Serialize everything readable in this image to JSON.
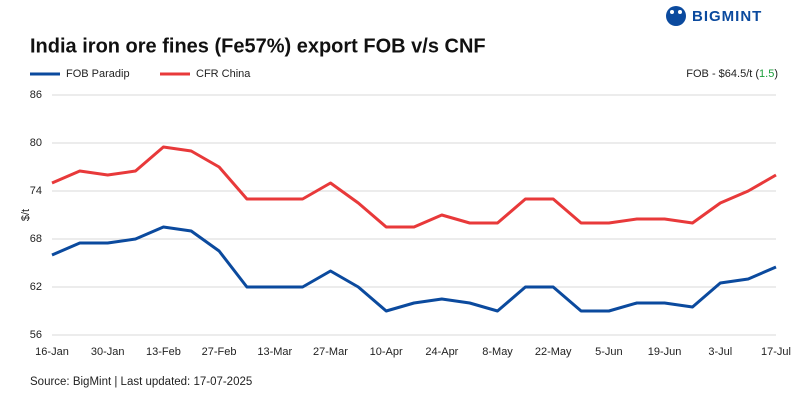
{
  "brand": "BIGMINT",
  "chart_data": {
    "type": "line",
    "title": "India iron ore fines (Fe57%) export FOB v/s CNF",
    "y_label": "$/t",
    "annotation": {
      "prefix": "FOB - $64.5/t (",
      "change": "1.5",
      "suffix": ")",
      "change_color": "#1a9e3a"
    },
    "source": "Source: BigMint | Last updated: 17-07-2025",
    "categories": [
      "16-Jan",
      null,
      "30-Jan",
      null,
      "13-Feb",
      null,
      "27-Feb",
      null,
      "13-Mar",
      null,
      "27-Mar",
      null,
      "10-Apr",
      null,
      "24-Apr",
      null,
      "8-May",
      null,
      "22-May",
      null,
      "5-Jun",
      null,
      "19-Jun",
      null,
      "3-Jul",
      null,
      "17-Jul"
    ],
    "series": [
      {
        "name": "FOB Paradip",
        "color": "#0b4a9e",
        "values": [
          66,
          67.5,
          67.5,
          68,
          69.5,
          69,
          66.5,
          62,
          62,
          62,
          64,
          62,
          59,
          60,
          60.5,
          60,
          59,
          62,
          62,
          59,
          59,
          60,
          60,
          59.5,
          62.5,
          63,
          64.5
        ]
      },
      {
        "name": "CFR China",
        "color": "#e8393a",
        "values": [
          75,
          76.5,
          76,
          76.5,
          79.5,
          79,
          77,
          73,
          73,
          73,
          75,
          72.5,
          69.5,
          69.5,
          71,
          70,
          70,
          73,
          73,
          70,
          70,
          70.5,
          70.5,
          70,
          72.5,
          74,
          76
        ]
      }
    ],
    "ylim": [
      56,
      86
    ],
    "yticks": [
      56,
      62,
      68,
      74,
      80,
      86
    ],
    "grid": true
  }
}
